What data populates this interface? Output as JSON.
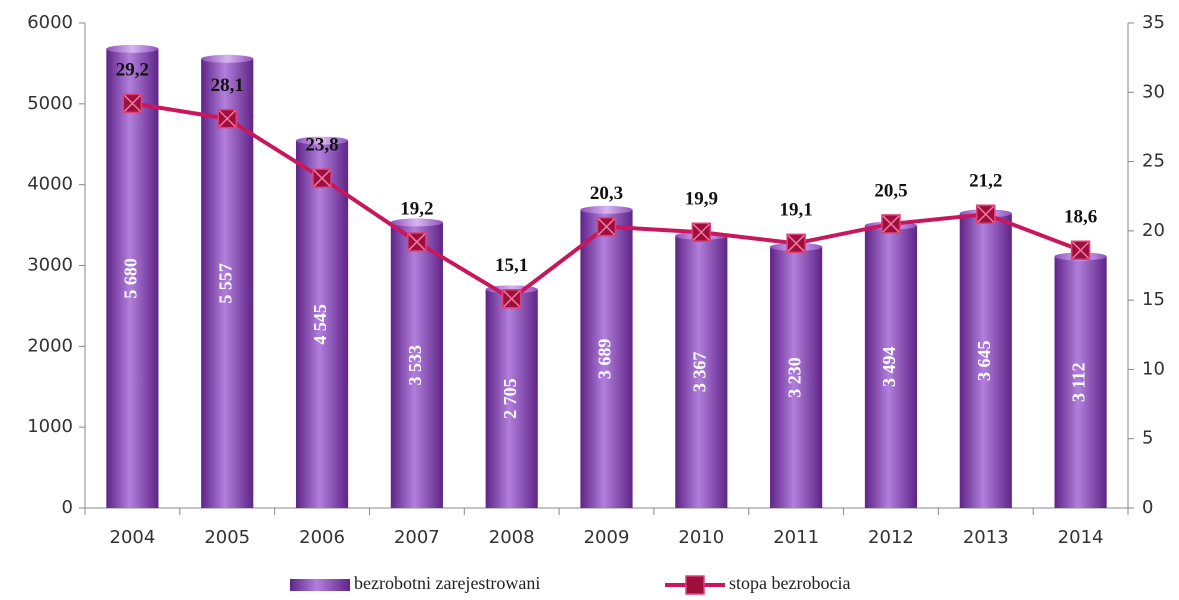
{
  "chart_data": {
    "type": "combo",
    "categories": [
      "2004",
      "2005",
      "2006",
      "2007",
      "2008",
      "2009",
      "2010",
      "2011",
      "2012",
      "2013",
      "2014"
    ],
    "series": [
      {
        "name": "bezrobotni zarejestrowani",
        "type": "bar",
        "color": "#9b59c9",
        "values": [
          5680,
          5557,
          4545,
          3533,
          2705,
          3689,
          3367,
          3230,
          3494,
          3645,
          3112
        ],
        "value_labels": [
          "5 680",
          "5 557",
          "4 545",
          "3 533",
          "2 705",
          "3 689",
          "3 367",
          "3 230",
          "3 494",
          "3 645",
          "3 112"
        ]
      },
      {
        "name": "stopa bezrobocia",
        "type": "line",
        "axis": "y2",
        "color": "#c8175d",
        "values": [
          29.2,
          28.1,
          23.8,
          19.2,
          15.1,
          20.3,
          19.9,
          19.1,
          20.5,
          21.2,
          18.6
        ],
        "value_labels": [
          "29,2",
          "28,1",
          "23,8",
          "19,2",
          "15,1",
          "20,3",
          "19,9",
          "19,1",
          "20,5",
          "21,2",
          "18,6"
        ]
      }
    ],
    "ylim": [
      0,
      6000
    ],
    "yticks": [
      0,
      1000,
      2000,
      3000,
      4000,
      5000,
      6000
    ],
    "y2lim": [
      0,
      35
    ],
    "y2ticks": [
      0,
      5,
      10,
      15,
      20,
      25,
      30,
      35
    ],
    "legend": "bottom"
  }
}
